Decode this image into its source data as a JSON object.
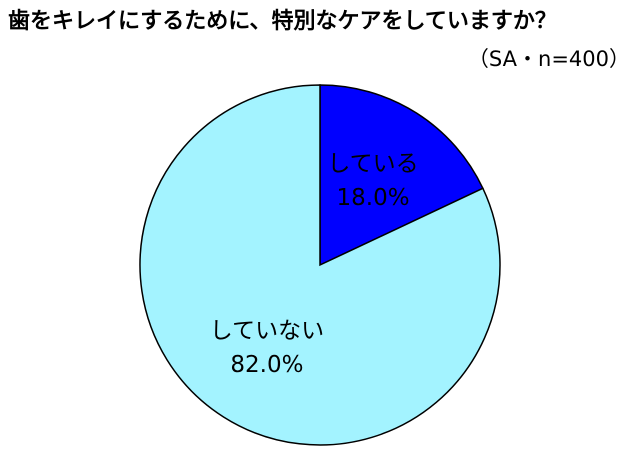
{
  "chart_data": {
    "type": "pie",
    "title": "歯をキレイにするために、特別なケアをしていますか？",
    "subtitle": "（SA・n=400）",
    "categories": [
      "している",
      "していない"
    ],
    "values": [
      18.0,
      82.0
    ],
    "value_labels": [
      "18.0%",
      "82.0%"
    ],
    "colors": [
      "#0000ff",
      "#a3f3ff"
    ]
  }
}
